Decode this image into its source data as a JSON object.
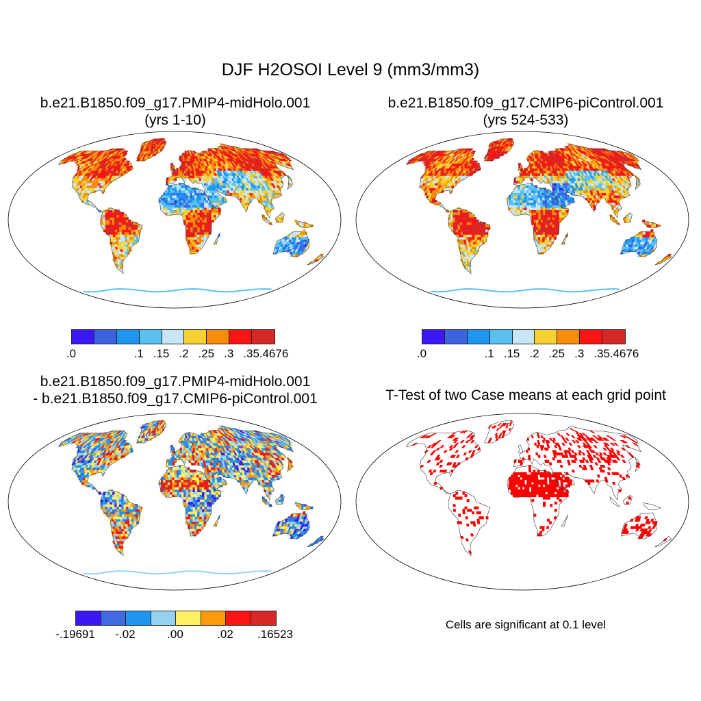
{
  "main_title": "DJF H2OSOI Level 9 (mm3/mm3)",
  "panels": [
    {
      "id": "p1",
      "title_line1": "b.e21.B1850.f09_g17.PMIP4-midHolo.001",
      "title_line2": "(yrs 1-10)"
    },
    {
      "id": "p2",
      "title_line1": "b.e21.B1850.f09_g17.CMIP6-piControl.001",
      "title_line2": "(yrs 524-533)"
    },
    {
      "id": "p3",
      "title_line1": "b.e21.B1850.f09_g17.PMIP4-midHolo.001",
      "title_line2": "- b.e21.B1850.f09_g17.CMIP6-piControl.001"
    },
    {
      "id": "p4",
      "title_line1": "T-Test of two Case means at each grid point",
      "title_line2": ""
    }
  ],
  "colorbars": {
    "abs": {
      "colors": [
        "#3c17f5",
        "#3e63e0",
        "#1e96f0",
        "#5ac0f0",
        "#c8e6f5",
        "#f5d232",
        "#f58c0a",
        "#fa1414",
        "#d72828"
      ],
      "labels": [
        ".0",
        ".1",
        ".15",
        ".2",
        ".25",
        ".3",
        ".35",
        ".4676"
      ]
    },
    "diff": {
      "colors": [
        "#3c17f5",
        "#4169e1",
        "#1e96f0",
        "#96d2f0",
        "#fff064",
        "#ff9b0a",
        "#fa1414",
        "#d72828"
      ],
      "labels": [
        "-.19691",
        "-.02",
        ".00",
        ".02",
        ".16523"
      ]
    }
  },
  "ttest_color": "#ff0000",
  "significance_note": "Cells are significant at 0.1 level"
}
